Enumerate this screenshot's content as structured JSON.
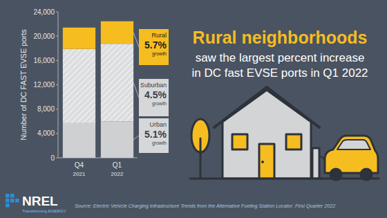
{
  "chart_data": {
    "type": "bar",
    "stacked": true,
    "title": "Rural neighborhoods",
    "subtitle": [
      "saw the largest percent increase",
      "in DC fast EVSE ports in Q1 2022"
    ],
    "y_label": "Number of DC FAST EVSE ports",
    "categories": [
      "Q4 2021",
      "Q1 2022"
    ],
    "series": [
      {
        "name": "Urban",
        "color": "#cfd0d2",
        "values": [
          5700,
          5990
        ]
      },
      {
        "name": "Suburban",
        "color": "#dcdddf",
        "line_style": "hatched",
        "values": [
          12200,
          12750
        ]
      },
      {
        "name": "Rural",
        "color": "#f5bd1f",
        "values": [
          3500,
          3700
        ]
      }
    ],
    "annotations": [
      {
        "value": "5.1%",
        "note": "growth"
      },
      {
        "value": "4.5%",
        "note": "growth"
      },
      {
        "value": "5.7%",
        "note": "growth"
      }
    ],
    "ylim": [
      0,
      24000
    ],
    "yticks": [
      0,
      {
        "value": 4000,
        "label": "4,000"
      },
      {
        "value": 8000,
        "label": "8,000"
      },
      {
        "value": 12000,
        "label": "12,000"
      },
      {
        "value": 16000,
        "label": "16,000"
      },
      {
        "value": 20000,
        "label": "20,000"
      },
      {
        "value": 24000,
        "label": "24,000"
      }
    ],
    "grid": false,
    "data_labels": false,
    "source": "Source: Electric Vehicle Charging Infrastructure Trends from the Alternative Fueling Station Locator: First Quarter 2022",
    "logo": {
      "name": "NREL",
      "tagline": "Transforming ENERGY"
    }
  }
}
